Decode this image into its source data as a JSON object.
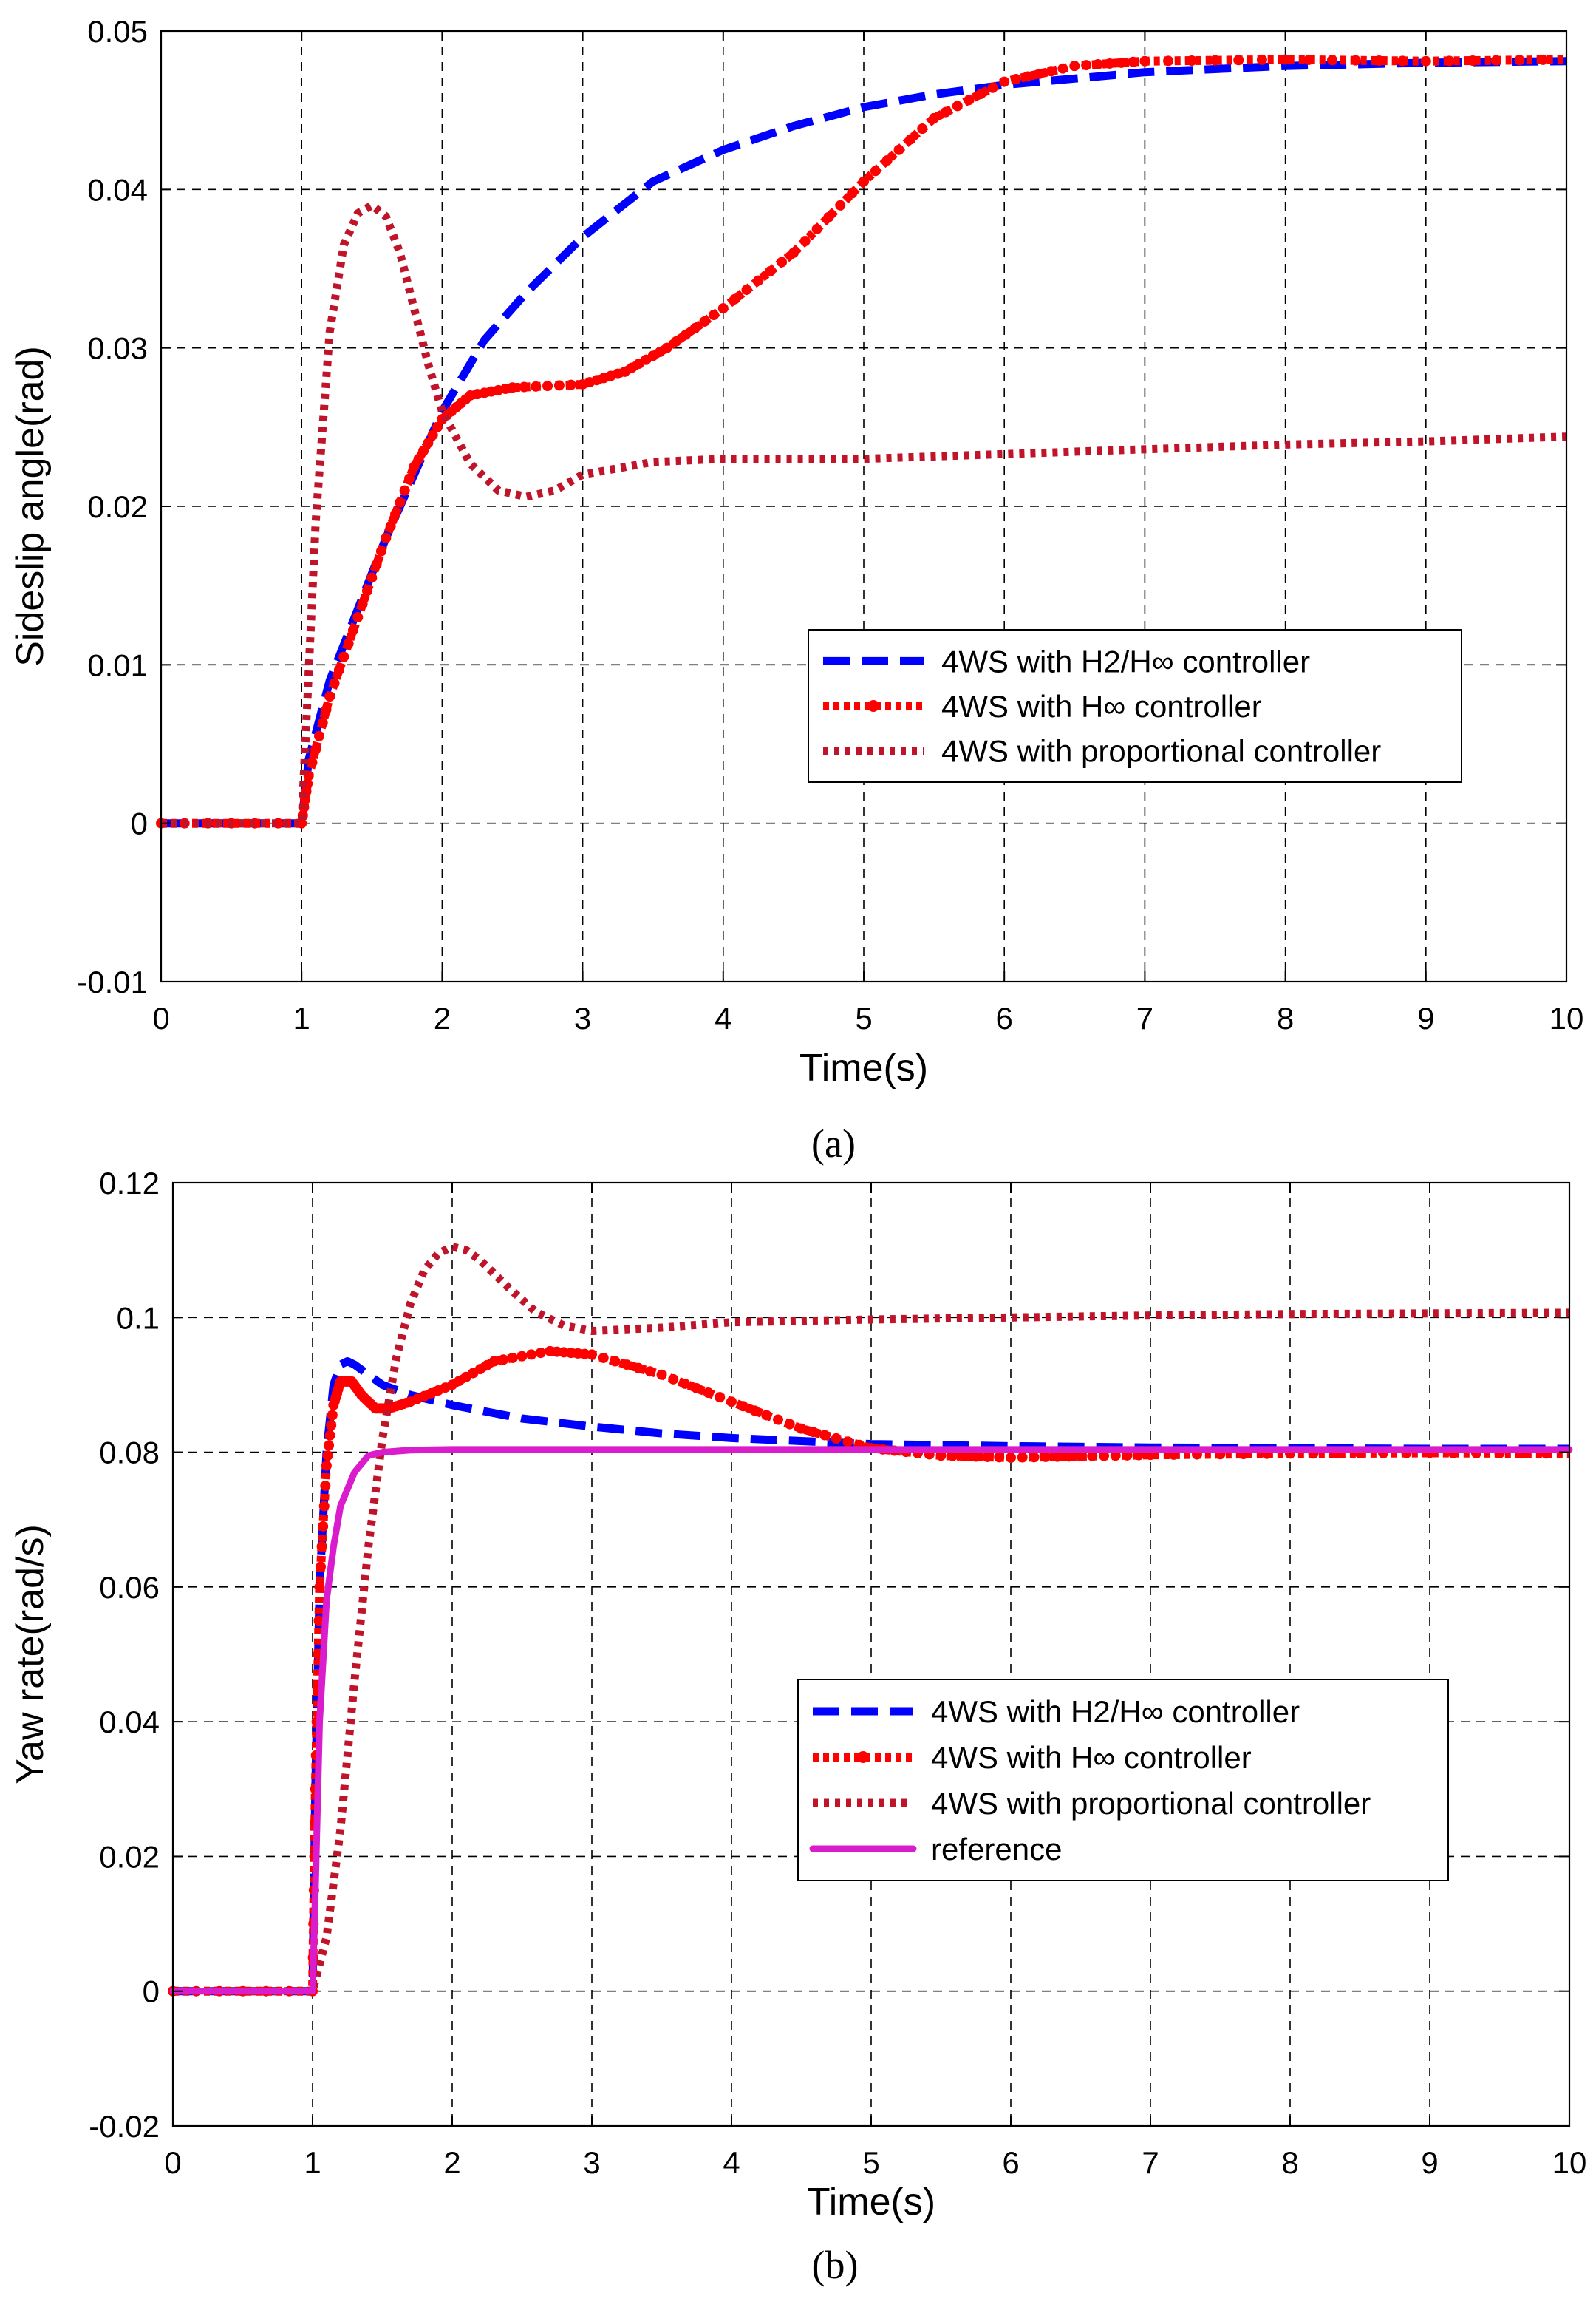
{
  "chart_data": [
    {
      "type": "line",
      "caption": "(a)",
      "xlabel": "Time(s)",
      "ylabel": "Sideslip angle(rad)",
      "xlim": [
        0,
        10
      ],
      "ylim": [
        -0.01,
        0.05
      ],
      "xticks": [
        0,
        1,
        2,
        3,
        4,
        5,
        6,
        7,
        8,
        9,
        10
      ],
      "yticks": [
        -0.01,
        0,
        0.01,
        0.02,
        0.03,
        0.04,
        0.05
      ],
      "xtick_labels": [
        "0",
        "1",
        "2",
        "3",
        "4",
        "5",
        "6",
        "7",
        "8",
        "9",
        "10"
      ],
      "ytick_labels": [
        "-0.01",
        "0",
        "0.01",
        "0.02",
        "0.03",
        "0.04",
        "0.05"
      ],
      "grid": true,
      "legend_position": "center-right",
      "series": [
        {
          "name": "4WS with H2/H∞ controller",
          "color": "#0000ff",
          "style": "dashed",
          "x": [
            0,
            1,
            1.05,
            1.2,
            1.4,
            1.6,
            1.8,
            2.0,
            2.3,
            2.6,
            3.0,
            3.5,
            4.0,
            4.5,
            5.0,
            5.5,
            6.0,
            6.5,
            7.0,
            8.0,
            9.0,
            10.0
          ],
          "y": [
            0,
            0,
            0.004,
            0.009,
            0.0135,
            0.018,
            0.022,
            0.026,
            0.0305,
            0.0335,
            0.037,
            0.0405,
            0.0425,
            0.044,
            0.0452,
            0.046,
            0.0466,
            0.047,
            0.0474,
            0.0478,
            0.048,
            0.0481
          ]
        },
        {
          "name": "4WS with H∞ controller",
          "color": "#ff0000",
          "style": "dotted-marker",
          "x": [
            0,
            1,
            1.05,
            1.2,
            1.4,
            1.6,
            1.8,
            2.0,
            2.2,
            2.5,
            3.0,
            3.3,
            3.6,
            4.0,
            4.5,
            5.0,
            5.5,
            6.0,
            6.5,
            7.0,
            8.0,
            9.0,
            10.0
          ],
          "y": [
            0,
            0,
            0.003,
            0.008,
            0.013,
            0.018,
            0.0225,
            0.0255,
            0.027,
            0.0275,
            0.0277,
            0.0285,
            0.03,
            0.0325,
            0.036,
            0.0405,
            0.0445,
            0.0468,
            0.0478,
            0.0481,
            0.0482,
            0.0481,
            0.0482
          ]
        },
        {
          "name": "4WS with proportional controller",
          "color": "#c0142a",
          "style": "dotted",
          "x": [
            0,
            1,
            1.1,
            1.2,
            1.3,
            1.4,
            1.5,
            1.6,
            1.7,
            1.8,
            1.9,
            2.0,
            2.2,
            2.4,
            2.6,
            2.8,
            3.0,
            3.5,
            4.0,
            5.0,
            6.0,
            7.0,
            8.0,
            9.0,
            10.0
          ],
          "y": [
            0,
            0,
            0.019,
            0.031,
            0.0365,
            0.0385,
            0.039,
            0.0383,
            0.036,
            0.0325,
            0.029,
            0.026,
            0.0227,
            0.021,
            0.0206,
            0.021,
            0.022,
            0.0228,
            0.023,
            0.023,
            0.0233,
            0.0236,
            0.0239,
            0.0241,
            0.0244
          ]
        }
      ]
    },
    {
      "type": "line",
      "caption": "(b)",
      "xlabel": "Time(s)",
      "ylabel": "Yaw rate(rad/s)",
      "xlim": [
        0,
        10
      ],
      "ylim": [
        -0.02,
        0.12
      ],
      "xticks": [
        0,
        1,
        2,
        3,
        4,
        5,
        6,
        7,
        8,
        9,
        10
      ],
      "yticks": [
        -0.02,
        0,
        0.02,
        0.04,
        0.06,
        0.08,
        0.1,
        0.12
      ],
      "xtick_labels": [
        "0",
        "1",
        "2",
        "3",
        "4",
        "5",
        "6",
        "7",
        "8",
        "9",
        "10"
      ],
      "ytick_labels": [
        "-0.02",
        "0",
        "0.02",
        "0.04",
        "0.06",
        "0.08",
        "0.1",
        "0.12"
      ],
      "grid": true,
      "legend_position": "center-right",
      "series": [
        {
          "name": "4WS with H2/H∞ controller",
          "color": "#0000ff",
          "style": "dashed",
          "x": [
            0,
            1,
            1.02,
            1.05,
            1.1,
            1.15,
            1.2,
            1.25,
            1.3,
            1.4,
            1.5,
            1.7,
            2.0,
            2.5,
            3.0,
            3.5,
            4.0,
            5.0,
            6.0,
            7.0,
            8.0,
            9.0,
            10.0
          ],
          "y": [
            0,
            0,
            0.03,
            0.06,
            0.08,
            0.09,
            0.093,
            0.0935,
            0.093,
            0.0915,
            0.09,
            0.0885,
            0.087,
            0.085,
            0.0838,
            0.0828,
            0.0821,
            0.0812,
            0.0809,
            0.0807,
            0.0806,
            0.0805,
            0.0805
          ]
        },
        {
          "name": "4WS with H∞ controller",
          "color": "#ff0000",
          "style": "dotted-marker",
          "x": [
            0,
            1,
            1.02,
            1.05,
            1.1,
            1.15,
            1.2,
            1.28,
            1.35,
            1.45,
            1.55,
            1.7,
            2.0,
            2.3,
            2.7,
            3.0,
            3.5,
            4.0,
            4.5,
            5.0,
            5.5,
            6.0,
            6.5,
            7.0,
            8.0,
            9.0,
            10.0
          ],
          "y": [
            0,
            0,
            0.03,
            0.06,
            0.078,
            0.087,
            0.0905,
            0.0905,
            0.0885,
            0.0865,
            0.0865,
            0.0875,
            0.09,
            0.0935,
            0.095,
            0.0945,
            0.0915,
            0.0875,
            0.0835,
            0.0806,
            0.0795,
            0.0792,
            0.0794,
            0.0796,
            0.0798,
            0.0799,
            0.0798
          ]
        },
        {
          "name": "4WS with proportional controller",
          "color": "#c0142a",
          "style": "dotted",
          "x": [
            0,
            1,
            1.1,
            1.2,
            1.3,
            1.4,
            1.5,
            1.6,
            1.7,
            1.8,
            1.9,
            2.0,
            2.1,
            2.2,
            2.4,
            2.6,
            2.8,
            3.0,
            3.5,
            4.0,
            5.0,
            6.0,
            7.0,
            8.0,
            9.0,
            10.0
          ],
          "y": [
            0,
            0,
            0.008,
            0.024,
            0.046,
            0.066,
            0.082,
            0.094,
            0.102,
            0.107,
            0.1095,
            0.1105,
            0.11,
            0.1085,
            0.1045,
            0.1008,
            0.0988,
            0.098,
            0.0985,
            0.0993,
            0.0997,
            0.1,
            0.1003,
            0.1005,
            0.1006,
            0.1007
          ]
        },
        {
          "name": "reference",
          "color": "#d91ccc",
          "style": "solid",
          "x": [
            0,
            1,
            1.02,
            1.05,
            1.1,
            1.15,
            1.2,
            1.3,
            1.4,
            1.5,
            1.7,
            2.0,
            10.0
          ],
          "y": [
            0,
            0,
            0.015,
            0.04,
            0.058,
            0.066,
            0.072,
            0.077,
            0.0795,
            0.08,
            0.0803,
            0.0804,
            0.0804
          ]
        }
      ]
    }
  ]
}
